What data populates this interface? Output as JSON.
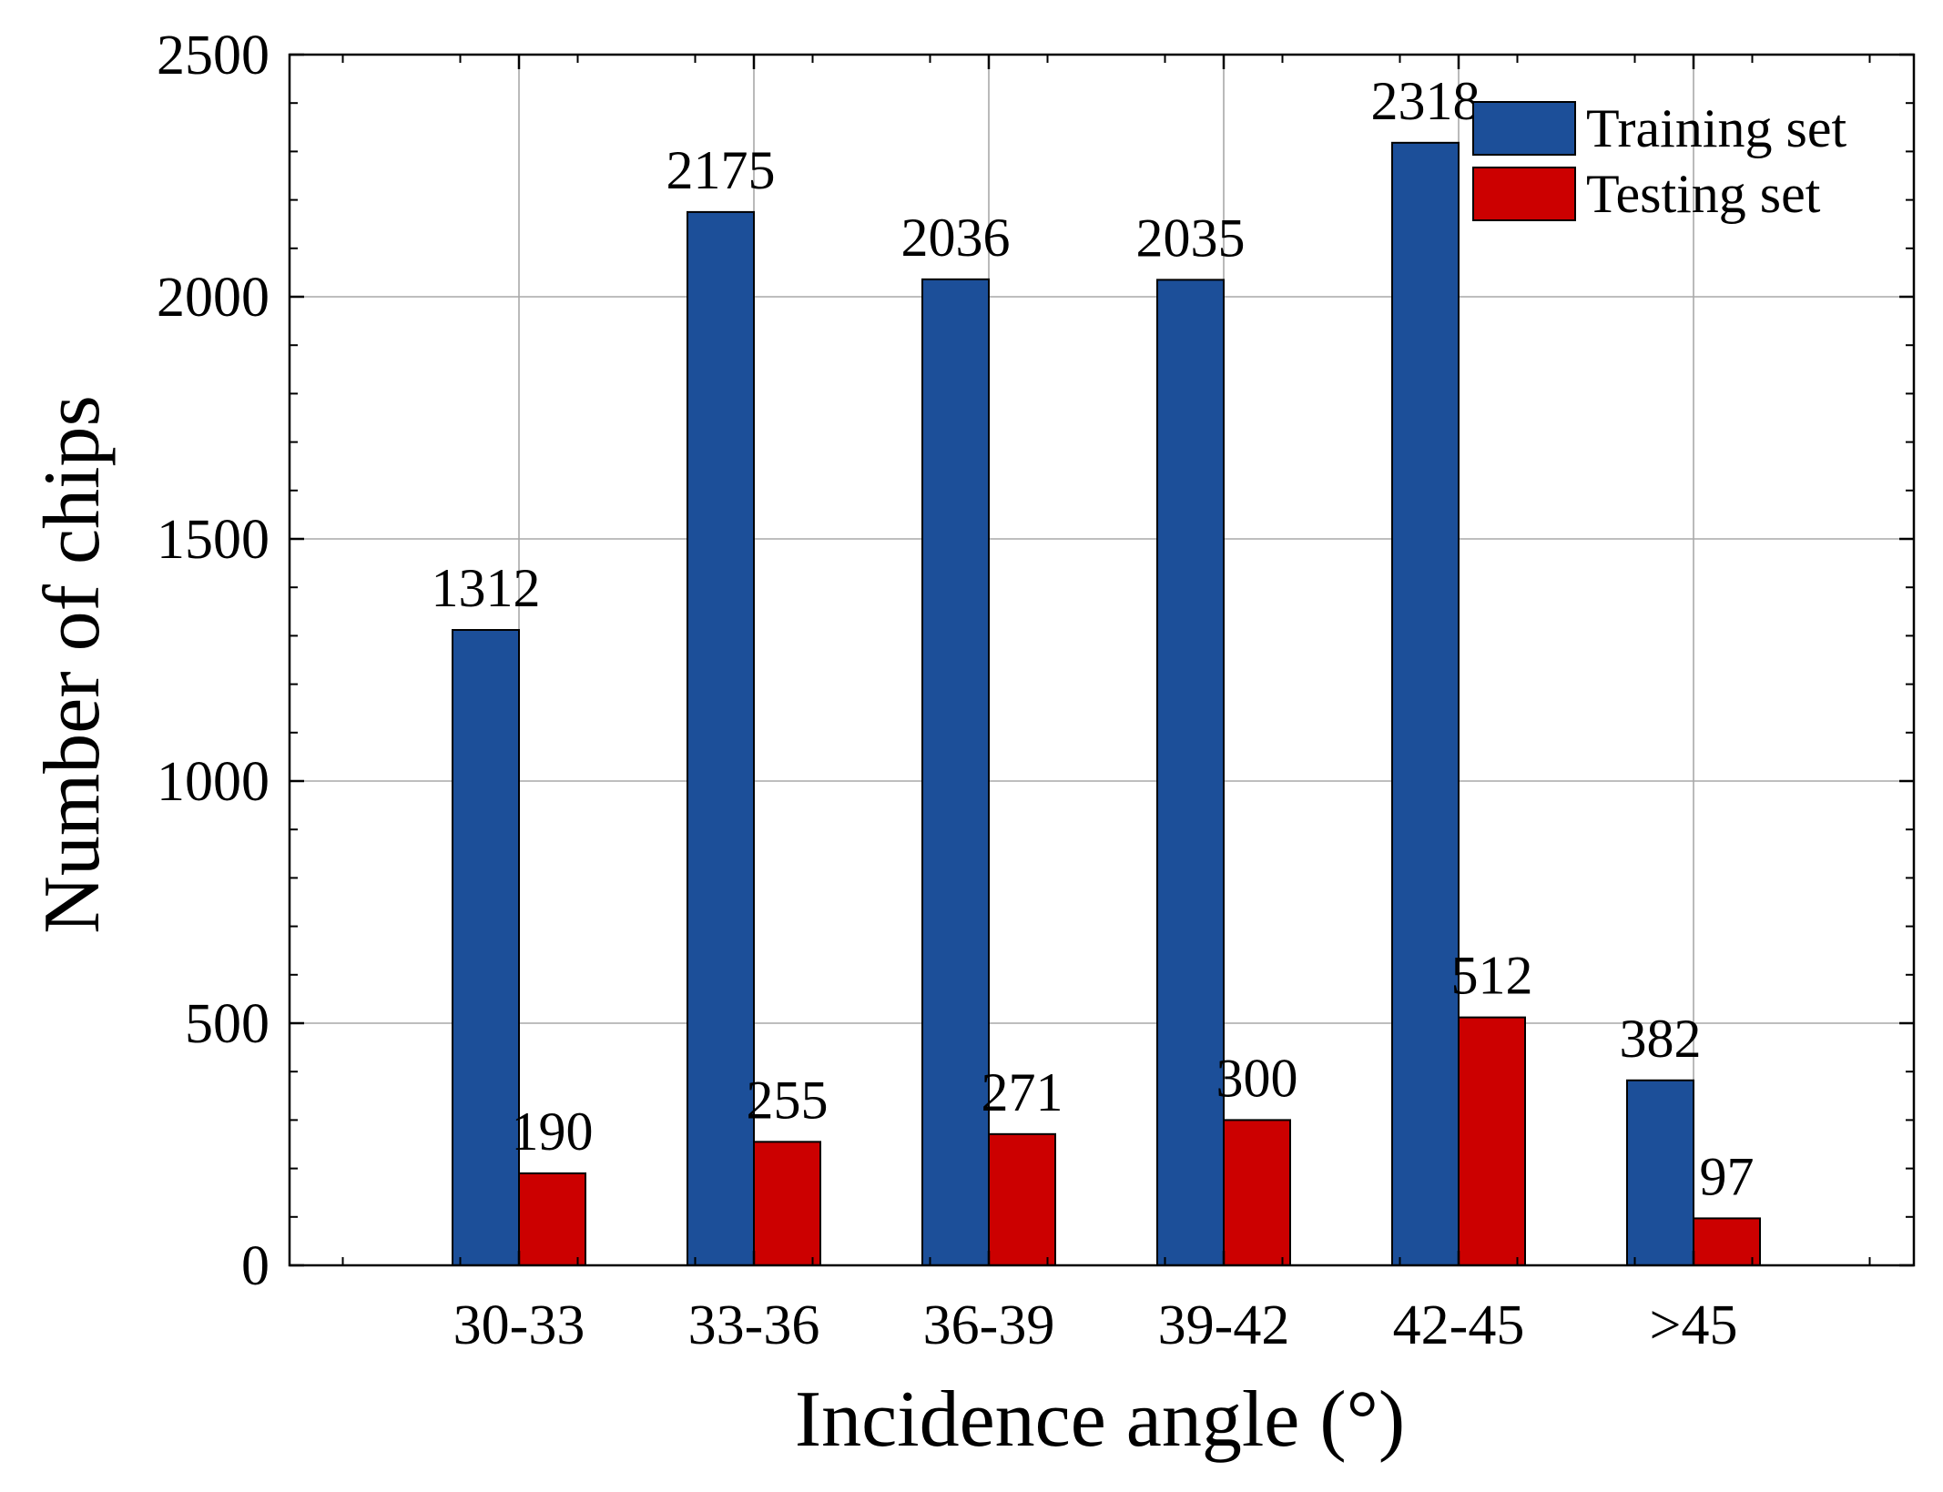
{
  "chart_data": {
    "type": "bar",
    "title": "",
    "xlabel": "Incidence angle (°)",
    "ylabel": "Number of chips",
    "categories": [
      "30-33",
      "33-36",
      "36-39",
      "39-42",
      "42-45",
      ">45"
    ],
    "series": [
      {
        "name": "Training set",
        "color": "#1c4f99",
        "values": [
          1312,
          2175,
          2036,
          2035,
          2318,
          382
        ]
      },
      {
        "name": "Testing set",
        "color": "#cc0000",
        "values": [
          190,
          255,
          271,
          300,
          512,
          97
        ]
      }
    ],
    "value_labels": {
      "Training set": [
        "1312",
        "2175",
        "2036",
        "2035",
        "2318",
        "382"
      ],
      "Testing set": [
        "190",
        "255",
        "271",
        "300",
        "512",
        "97"
      ]
    },
    "ylim": [
      0,
      2500
    ],
    "yticks": [
      "0",
      "500",
      "1000",
      "1500",
      "2000",
      "2500"
    ],
    "grid": true,
    "legend_position": "top-right"
  }
}
